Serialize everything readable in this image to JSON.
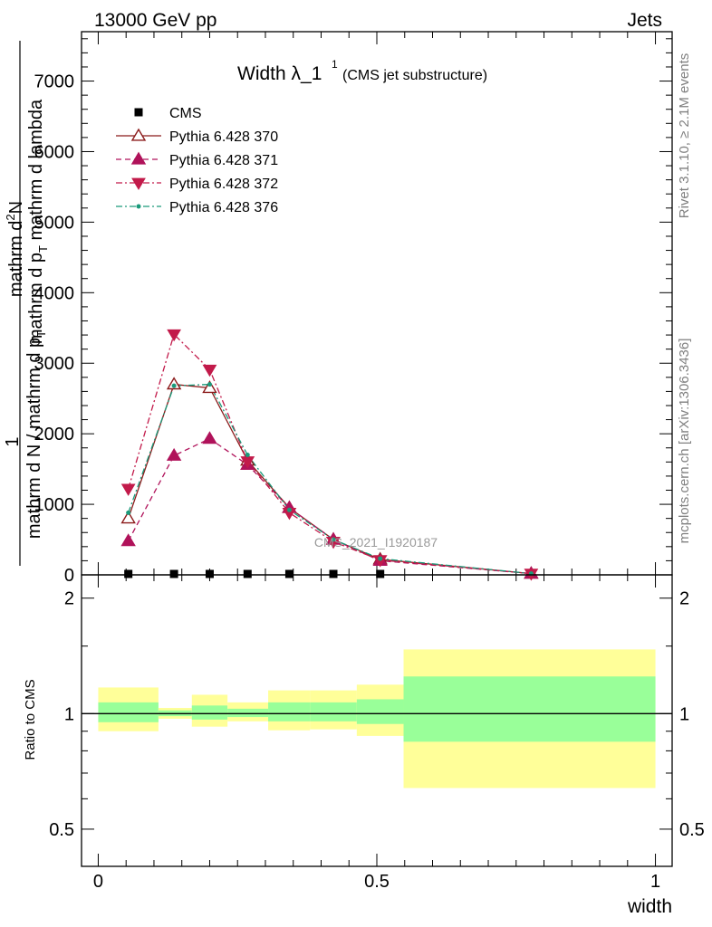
{
  "header": {
    "left": "13000 GeV pp",
    "right": "Jets"
  },
  "title": {
    "main": "Width λ_1",
    "superscript": "1",
    "sub": "(CMS jet substructure)"
  },
  "side_labels": {
    "rivet": "Rivet 3.1.10, ≥ 2.1M events",
    "mcplots": "mcplots.cern.ch [arXiv:1306.3436]"
  },
  "watermark": "CMS_2021_I1920187",
  "main_ylabel": {
    "numerator_line1": "mathrm d",
    "numerator_sup": "2",
    "numerator_line1b": "N",
    "numerator_line2": "mathrm d p",
    "numerator_sub": "T",
    "numerator_line2b": " mathrm d lambda",
    "prefix": "1",
    "denominator": "mathrm d N / mathrm d p",
    "denominator_sub": "T"
  },
  "main_tick_labels": [
    "0",
    "1000",
    "2000",
    "3000",
    "4000",
    "5000",
    "6000",
    "7000"
  ],
  "ratio_ylabel": "Ratio to CMS",
  "ratio_tick_labels": [
    "0.5",
    "1",
    "2"
  ],
  "x_tick_labels": [
    "0",
    "0.5",
    "1"
  ],
  "xlabel": "width",
  "legend": [
    {
      "label": "CMS",
      "color": "#000000",
      "marker": "square",
      "dash": "none"
    },
    {
      "label": "Pythia 6.428 370",
      "color": "#8b1a1a",
      "marker": "triangle-up-open",
      "dash": "solid"
    },
    {
      "label": "Pythia 6.428 371",
      "color": "#b0125a",
      "marker": "triangle-up",
      "dash": "dashed"
    },
    {
      "label": "Pythia 6.428 372",
      "color": "#c21a4a",
      "marker": "triangle-down",
      "dash": "dashdot"
    },
    {
      "label": "Pythia 6.428 376",
      "color": "#1a9a7a",
      "marker": "dot",
      "dash": "dashdot"
    }
  ],
  "chart_data": [
    {
      "type": "line",
      "panel": "main",
      "xlim": [
        -0.03,
        1.03
      ],
      "ylim": [
        0,
        7700
      ],
      "x": [
        0.054,
        0.136,
        0.2,
        0.268,
        0.343,
        0.422,
        0.506,
        0.777
      ],
      "bin_edges": [
        0.0,
        0.108,
        0.168,
        0.232,
        0.305,
        0.38,
        0.464,
        0.548,
        1.0
      ],
      "series": [
        {
          "name": "CMS",
          "values": [
            2,
            2,
            2,
            2,
            2,
            2,
            2,
            2
          ]
        },
        {
          "name": "Pythia 6.428 370",
          "values": [
            800,
            2700,
            2650,
            1620,
            950,
            500,
            220,
            18
          ]
        },
        {
          "name": "Pythia 6.428 371",
          "values": [
            480,
            1690,
            1930,
            1560,
            950,
            500,
            200,
            18
          ]
        },
        {
          "name": "Pythia 6.428 372",
          "values": [
            1220,
            3410,
            2910,
            1610,
            880,
            470,
            210,
            18
          ]
        },
        {
          "name": "Pythia 6.428 376",
          "values": [
            880,
            2680,
            2700,
            1700,
            920,
            500,
            230,
            18
          ]
        }
      ]
    },
    {
      "type": "area",
      "panel": "ratio",
      "xlim": [
        -0.03,
        1.03
      ],
      "ylim": [
        0.4,
        2.3
      ],
      "scale": "log",
      "reference": 1,
      "bands": [
        {
          "x0": 0.0,
          "x1": 0.108,
          "inner": [
            0.95,
            1.07
          ],
          "outer": [
            0.9,
            1.17
          ]
        },
        {
          "x0": 0.108,
          "x1": 0.168,
          "inner": [
            0.985,
            1.02
          ],
          "outer": [
            0.97,
            1.035
          ]
        },
        {
          "x0": 0.168,
          "x1": 0.232,
          "inner": [
            0.965,
            1.05
          ],
          "outer": [
            0.925,
            1.12
          ]
        },
        {
          "x0": 0.232,
          "x1": 0.305,
          "inner": [
            0.98,
            1.03
          ],
          "outer": [
            0.955,
            1.07
          ]
        },
        {
          "x0": 0.305,
          "x1": 0.38,
          "inner": [
            0.955,
            1.07
          ],
          "outer": [
            0.905,
            1.15
          ]
        },
        {
          "x0": 0.38,
          "x1": 0.464,
          "inner": [
            0.955,
            1.07
          ],
          "outer": [
            0.91,
            1.15
          ]
        },
        {
          "x0": 0.464,
          "x1": 0.548,
          "inner": [
            0.94,
            1.09
          ],
          "outer": [
            0.875,
            1.19
          ]
        },
        {
          "x0": 0.548,
          "x1": 1.0,
          "inner": [
            0.845,
            1.25
          ],
          "outer": [
            0.64,
            1.47
          ]
        }
      ]
    }
  ],
  "colors": {
    "band_inner": "#99ff99",
    "band_outer": "#ffff99",
    "watermark": "#9a9a9a",
    "side_text": "#808080"
  }
}
